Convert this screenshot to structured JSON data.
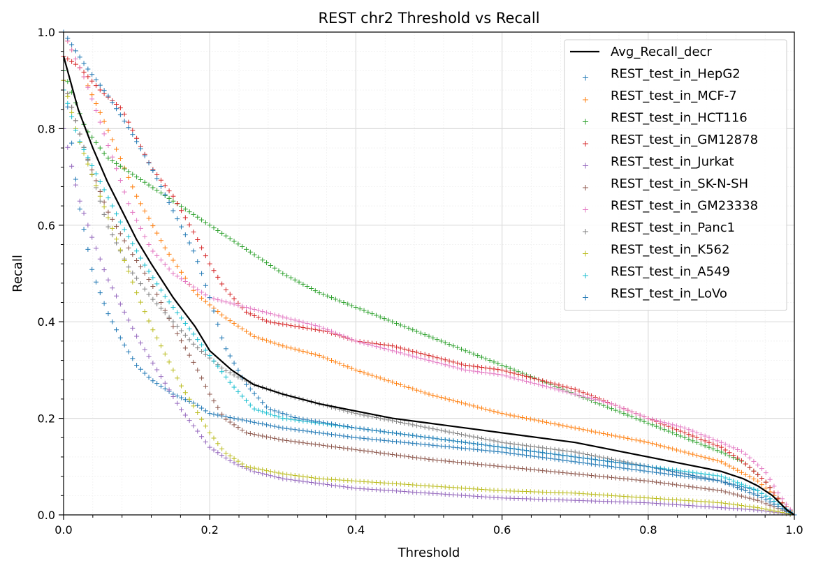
{
  "chart_data": {
    "type": "line",
    "title": "REST chr2 Threshold vs Recall",
    "xlabel": "Threshold",
    "ylabel": "Recall",
    "xlim": [
      0.0,
      1.0
    ],
    "ylim": [
      0.0,
      1.0
    ],
    "x_ticks": [
      "0.0",
      "0.2",
      "0.4",
      "0.6",
      "0.8",
      "1.0"
    ],
    "y_ticks": [
      "0.0",
      "0.2",
      "0.4",
      "0.6",
      "0.8",
      "1.0"
    ],
    "grid": true,
    "minor_grid": true,
    "legend_position": "top-right",
    "series": [
      {
        "name": "Avg_Recall_decr",
        "style": "line",
        "color": "#000000",
        "x": [
          0.0,
          0.02,
          0.04,
          0.06,
          0.08,
          0.1,
          0.12,
          0.15,
          0.18,
          0.2,
          0.23,
          0.26,
          0.3,
          0.35,
          0.4,
          0.45,
          0.5,
          0.55,
          0.6,
          0.65,
          0.7,
          0.75,
          0.8,
          0.85,
          0.9,
          0.93,
          0.95,
          0.97,
          0.99,
          1.0
        ],
        "y": [
          0.95,
          0.84,
          0.76,
          0.69,
          0.63,
          0.57,
          0.52,
          0.45,
          0.39,
          0.34,
          0.3,
          0.27,
          0.25,
          0.23,
          0.215,
          0.2,
          0.19,
          0.18,
          0.17,
          0.16,
          0.15,
          0.135,
          0.12,
          0.105,
          0.09,
          0.075,
          0.06,
          0.04,
          0.01,
          0.0
        ]
      },
      {
        "name": "REST_test_in_HepG2",
        "style": "marker",
        "color": "#1f77b4",
        "x": [
          0.0,
          0.02,
          0.04,
          0.06,
          0.08,
          0.1,
          0.12,
          0.15,
          0.18,
          0.2,
          0.25,
          0.3,
          0.4,
          0.5,
          0.6,
          0.7,
          0.8,
          0.9,
          0.95,
          0.98,
          1.0
        ],
        "y": [
          0.92,
          0.65,
          0.5,
          0.42,
          0.36,
          0.31,
          0.28,
          0.25,
          0.23,
          0.21,
          0.195,
          0.18,
          0.16,
          0.145,
          0.13,
          0.11,
          0.09,
          0.07,
          0.05,
          0.02,
          0.0
        ]
      },
      {
        "name": "REST_test_in_MCF-7",
        "style": "marker",
        "color": "#ff7f0e",
        "x": [
          0.0,
          0.03,
          0.06,
          0.1,
          0.14,
          0.18,
          0.22,
          0.26,
          0.3,
          0.35,
          0.4,
          0.5,
          0.6,
          0.7,
          0.8,
          0.9,
          0.95,
          0.98,
          1.0
        ],
        "y": [
          1.0,
          0.9,
          0.8,
          0.66,
          0.55,
          0.46,
          0.41,
          0.37,
          0.35,
          0.33,
          0.3,
          0.25,
          0.21,
          0.18,
          0.15,
          0.11,
          0.07,
          0.03,
          0.0
        ]
      },
      {
        "name": "REST_test_in_HCT116",
        "style": "marker",
        "color": "#2ca02c",
        "x": [
          0.0,
          0.03,
          0.06,
          0.1,
          0.15,
          0.2,
          0.25,
          0.3,
          0.35,
          0.4,
          0.45,
          0.5,
          0.55,
          0.6,
          0.65,
          0.7,
          0.75,
          0.8,
          0.85,
          0.9,
          0.93,
          0.96,
          0.98,
          1.0
        ],
        "y": [
          0.92,
          0.8,
          0.74,
          0.7,
          0.65,
          0.6,
          0.55,
          0.5,
          0.46,
          0.43,
          0.4,
          0.37,
          0.34,
          0.31,
          0.28,
          0.25,
          0.22,
          0.19,
          0.16,
          0.13,
          0.11,
          0.07,
          0.03,
          0.0
        ]
      },
      {
        "name": "REST_test_in_GM12878",
        "style": "marker",
        "color": "#d62728",
        "x": [
          0.0,
          0.02,
          0.05,
          0.08,
          0.1,
          0.12,
          0.15,
          0.18,
          0.2,
          0.22,
          0.25,
          0.28,
          0.32,
          0.36,
          0.4,
          0.45,
          0.5,
          0.55,
          0.6,
          0.65,
          0.7,
          0.75,
          0.8,
          0.85,
          0.9,
          0.93,
          0.96,
          0.98,
          1.0
        ],
        "y": [
          0.95,
          0.93,
          0.88,
          0.84,
          0.78,
          0.72,
          0.66,
          0.58,
          0.52,
          0.47,
          0.42,
          0.4,
          0.39,
          0.38,
          0.36,
          0.35,
          0.33,
          0.31,
          0.3,
          0.28,
          0.26,
          0.23,
          0.2,
          0.17,
          0.14,
          0.11,
          0.07,
          0.03,
          0.0
        ]
      },
      {
        "name": "REST_test_in_Jurkat",
        "style": "marker",
        "color": "#9467bd",
        "x": [
          0.0,
          0.02,
          0.04,
          0.06,
          0.08,
          0.1,
          0.12,
          0.14,
          0.16,
          0.18,
          0.2,
          0.23,
          0.26,
          0.3,
          0.35,
          0.4,
          0.5,
          0.6,
          0.7,
          0.8,
          0.9,
          0.95,
          1.0
        ],
        "y": [
          0.8,
          0.66,
          0.57,
          0.49,
          0.43,
          0.37,
          0.32,
          0.27,
          0.22,
          0.18,
          0.14,
          0.11,
          0.09,
          0.075,
          0.065,
          0.055,
          0.045,
          0.035,
          0.03,
          0.025,
          0.015,
          0.01,
          0.0
        ]
      },
      {
        "name": "REST_test_in_SK-N-SH",
        "style": "marker",
        "color": "#8c564b",
        "x": [
          0.0,
          0.03,
          0.06,
          0.09,
          0.12,
          0.15,
          0.18,
          0.2,
          0.22,
          0.25,
          0.3,
          0.35,
          0.4,
          0.5,
          0.6,
          0.7,
          0.8,
          0.9,
          0.95,
          1.0
        ],
        "y": [
          0.9,
          0.75,
          0.63,
          0.55,
          0.48,
          0.39,
          0.31,
          0.25,
          0.2,
          0.17,
          0.155,
          0.145,
          0.135,
          0.115,
          0.1,
          0.085,
          0.07,
          0.05,
          0.03,
          0.0
        ]
      },
      {
        "name": "REST_test_in_GM23338",
        "style": "marker",
        "color": "#e377c2",
        "x": [
          0.0,
          0.03,
          0.06,
          0.09,
          0.12,
          0.15,
          0.18,
          0.2,
          0.25,
          0.3,
          0.35,
          0.4,
          0.45,
          0.5,
          0.55,
          0.6,
          0.65,
          0.7,
          0.75,
          0.8,
          0.85,
          0.9,
          0.93,
          0.96,
          0.98,
          1.0
        ],
        "y": [
          1.0,
          0.9,
          0.77,
          0.64,
          0.55,
          0.5,
          0.47,
          0.45,
          0.43,
          0.41,
          0.39,
          0.36,
          0.34,
          0.32,
          0.3,
          0.29,
          0.27,
          0.25,
          0.23,
          0.2,
          0.18,
          0.15,
          0.13,
          0.09,
          0.04,
          0.0
        ]
      },
      {
        "name": "REST_test_in_Panc1",
        "style": "marker",
        "color": "#7f7f7f",
        "x": [
          0.0,
          0.03,
          0.06,
          0.09,
          0.12,
          0.15,
          0.18,
          0.22,
          0.26,
          0.3,
          0.35,
          0.4,
          0.5,
          0.6,
          0.7,
          0.8,
          0.9,
          0.95,
          1.0
        ],
        "y": [
          0.9,
          0.75,
          0.6,
          0.51,
          0.45,
          0.4,
          0.35,
          0.3,
          0.27,
          0.25,
          0.23,
          0.21,
          0.18,
          0.15,
          0.13,
          0.1,
          0.07,
          0.04,
          0.0
        ]
      },
      {
        "name": "REST_test_in_K562",
        "style": "marker",
        "color": "#bcbd22",
        "x": [
          0.0,
          0.02,
          0.04,
          0.06,
          0.08,
          0.1,
          0.12,
          0.14,
          0.16,
          0.18,
          0.2,
          0.22,
          0.25,
          0.3,
          0.35,
          0.4,
          0.5,
          0.6,
          0.7,
          0.8,
          0.9,
          0.95,
          1.0
        ],
        "y": [
          0.9,
          0.78,
          0.7,
          0.62,
          0.54,
          0.46,
          0.39,
          0.33,
          0.27,
          0.22,
          0.17,
          0.13,
          0.1,
          0.085,
          0.075,
          0.07,
          0.06,
          0.05,
          0.045,
          0.035,
          0.025,
          0.015,
          0.0
        ]
      },
      {
        "name": "REST_test_in_A549",
        "style": "marker",
        "color": "#17becf",
        "x": [
          0.0,
          0.02,
          0.05,
          0.08,
          0.11,
          0.14,
          0.17,
          0.2,
          0.23,
          0.26,
          0.3,
          0.35,
          0.4,
          0.5,
          0.6,
          0.7,
          0.8,
          0.9,
          0.95,
          1.0
        ],
        "y": [
          0.88,
          0.78,
          0.69,
          0.6,
          0.52,
          0.45,
          0.39,
          0.33,
          0.27,
          0.22,
          0.2,
          0.19,
          0.18,
          0.16,
          0.14,
          0.12,
          0.1,
          0.08,
          0.05,
          0.0
        ]
      },
      {
        "name": "REST_test_in_LoVo",
        "style": "marker",
        "color": "#1f77b4",
        "x": [
          0.0,
          0.03,
          0.06,
          0.09,
          0.12,
          0.15,
          0.18,
          0.2,
          0.22,
          0.25,
          0.28,
          0.32,
          0.36,
          0.4,
          0.5,
          0.6,
          0.7,
          0.8,
          0.9,
          0.95,
          1.0
        ],
        "y": [
          1.0,
          0.93,
          0.87,
          0.8,
          0.72,
          0.63,
          0.54,
          0.45,
          0.35,
          0.27,
          0.22,
          0.2,
          0.19,
          0.18,
          0.16,
          0.14,
          0.12,
          0.1,
          0.07,
          0.04,
          0.0
        ]
      }
    ]
  }
}
